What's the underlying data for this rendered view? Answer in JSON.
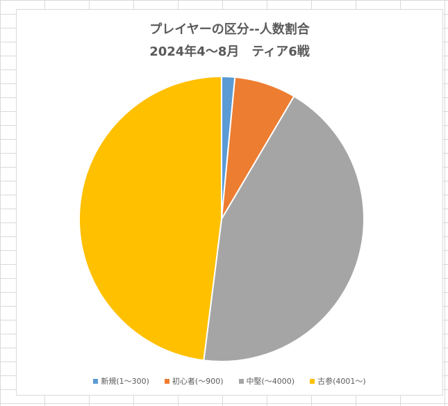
{
  "chart_data": {
    "type": "pie",
    "title": "プレイヤーの区分--人数割合",
    "subtitle": "2024年4～8月　ティア6戦",
    "categories": [
      "新規(1～300)",
      "初心者(～900)",
      "中堅(～4000)",
      "古参(4001～)"
    ],
    "values": [
      1.5,
      7.0,
      43.5,
      48.0
    ],
    "colors": [
      "#5B9BD5",
      "#ED7D31",
      "#A5A5A5",
      "#FFC000"
    ],
    "start_angle_deg": 0,
    "direction": "clockwise",
    "legend_position": "bottom"
  }
}
